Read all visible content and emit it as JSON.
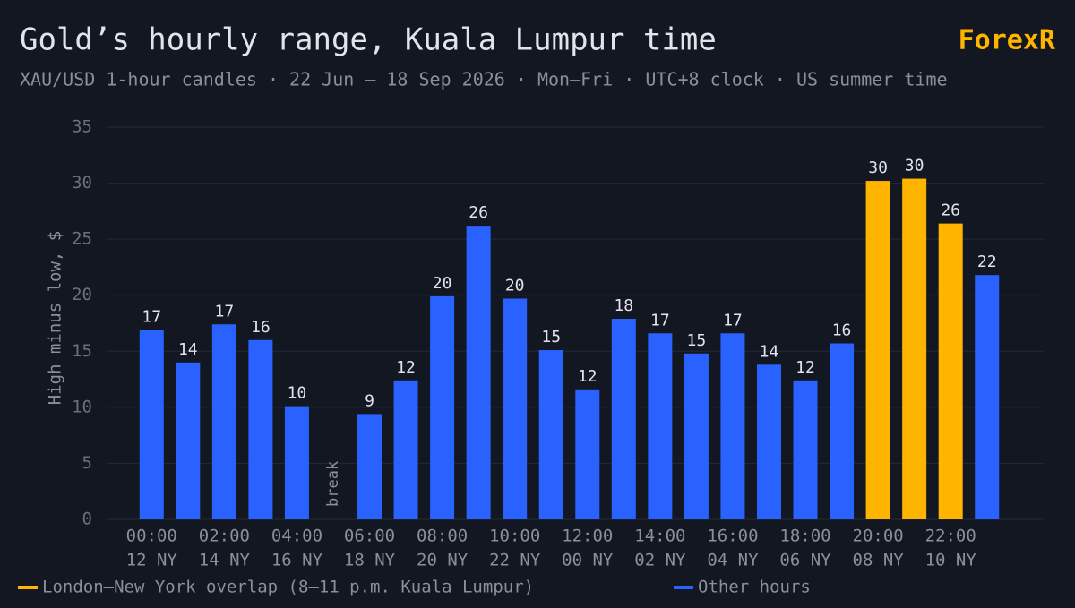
{
  "chart_data": {
    "type": "bar",
    "title": "Gold’s hourly range, Kuala Lumpur time",
    "subtitle": "XAU/USD 1-hour candles · 22 Jun – 18 Sep 2026 · Mon–Fri · UTC+8 clock · US summer time",
    "brand": "ForexR",
    "ylabel": "High minus low, $",
    "annotation": "break",
    "categories": [
      "00:00",
      null,
      "02:00",
      null,
      "04:00",
      null,
      "06:00",
      null,
      "08:00",
      null,
      "10:00",
      null,
      "12:00",
      null,
      "14:00",
      null,
      "16:00",
      null,
      "18:00",
      null,
      "20:00",
      null,
      "22:00",
      null
    ],
    "categories_ny": [
      "12 NY",
      null,
      "14 NY",
      null,
      "16 NY",
      null,
      "18 NY",
      null,
      "20 NY",
      null,
      "22 NY",
      null,
      "00 NY",
      null,
      "02 NY",
      null,
      "04 NY",
      null,
      "06 NY",
      null,
      "08 NY",
      null,
      "10 NY",
      null
    ],
    "series": [
      {
        "name": "London–New York overlap (8–11 p.m. Kuala Lumpur)",
        "color": "#ffb400",
        "values": [
          null,
          null,
          null,
          null,
          null,
          null,
          null,
          null,
          null,
          null,
          null,
          null,
          null,
          null,
          null,
          null,
          null,
          null,
          null,
          null,
          30.2,
          30.4,
          26.4,
          null
        ],
        "value_labels": [
          null,
          null,
          null,
          null,
          null,
          null,
          null,
          null,
          null,
          null,
          null,
          null,
          null,
          null,
          null,
          null,
          null,
          null,
          null,
          null,
          "30",
          "30",
          "26",
          null
        ]
      },
      {
        "name": "Other hours",
        "color": "#2962ff",
        "values": [
          16.9,
          14.0,
          17.4,
          16.0,
          10.1,
          null,
          9.4,
          12.4,
          19.9,
          26.2,
          19.7,
          15.1,
          11.6,
          17.9,
          16.6,
          14.8,
          16.6,
          13.8,
          12.4,
          15.7,
          null,
          null,
          null,
          21.8
        ],
        "value_labels": [
          "17",
          "14",
          "17",
          "16",
          "10",
          null,
          "9",
          "12",
          "20",
          "26",
          "20",
          "15",
          "12",
          "18",
          "17",
          "15",
          "17",
          "14",
          "12",
          "16",
          null,
          null,
          null,
          "22"
        ]
      }
    ],
    "ylim": [
      0,
      35
    ],
    "yticks": [
      0,
      5,
      10,
      15,
      20,
      25,
      30,
      35
    ],
    "grid": true
  }
}
